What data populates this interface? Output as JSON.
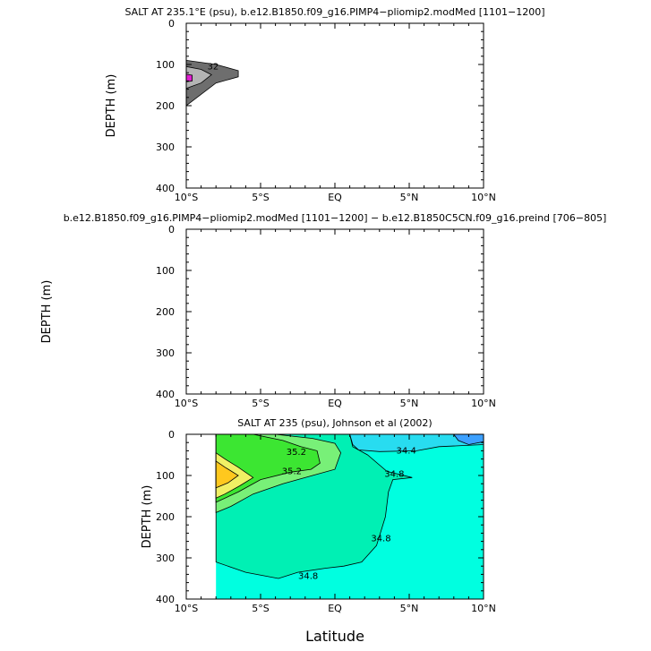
{
  "chart_data": [
    {
      "type": "contour",
      "title": "SALT AT 235.1°E (psu), b.e12.B1850.f09_g16.PIMP4−pliomip2.modMed [1101−1200]",
      "ylabel": "DEPTH (m)",
      "xlabel": "",
      "xlim": [
        -10,
        10
      ],
      "ylim": [
        400,
        0
      ],
      "xticks": [
        -10,
        -5,
        0,
        5,
        10
      ],
      "xtick_labels": [
        "10°S",
        "5°S",
        "EQ",
        "5°N",
        "10°N"
      ],
      "yticks": [
        0,
        100,
        200,
        300,
        400
      ],
      "ytick_labels": [
        "0",
        "100",
        "200",
        "300",
        "400"
      ],
      "contour_labels": [
        {
          "text": "32",
          "lat": -8.2,
          "depth": 105
        }
      ],
      "regions": [
        {
          "name": "outer",
          "color": "#6e6e6e",
          "points": [
            [
              -10,
              90
            ],
            [
              -8,
              100
            ],
            [
              -6.5,
              115
            ],
            [
              -6.5,
              130
            ],
            [
              -8,
              145
            ],
            [
              -10,
              200
            ]
          ]
        },
        {
          "name": "middle",
          "color": "#b4b4b4",
          "points": [
            [
              -10,
              105
            ],
            [
              -9,
              112
            ],
            [
              -8.3,
              125
            ],
            [
              -9,
              145
            ],
            [
              -10,
              158
            ]
          ]
        },
        {
          "name": "core",
          "color": "#e020d0",
          "points": [
            [
              -10,
              124
            ],
            [
              -9.6,
              126
            ],
            [
              -9.6,
              140
            ],
            [
              -10,
              142
            ]
          ]
        }
      ]
    },
    {
      "type": "contour",
      "title": "b.e12.B1850.f09_g16.PIMP4−pliomip2.modMed [1101−1200] − b.e12.B1850C5CN.f09_g16.preind [706−805]",
      "ylabel": "DEPTH (m)",
      "xlabel": "",
      "xlim": [
        -10,
        10
      ],
      "ylim": [
        400,
        0
      ],
      "xticks": [
        -10,
        -5,
        0,
        5,
        10
      ],
      "xtick_labels": [
        "10°S",
        "5°S",
        "EQ",
        "5°N",
        "10°N"
      ],
      "yticks": [
        0,
        100,
        200,
        300,
        400
      ],
      "ytick_labels": [
        "0",
        "100",
        "200",
        "300",
        "400"
      ],
      "regions": []
    },
    {
      "type": "contour",
      "title": "SALT AT 235 (psu), Johnson et al (2002)",
      "ylabel": "DEPTH (m)",
      "xlabel": "Latitude",
      "xlim": [
        -10,
        10
      ],
      "ylim": [
        400,
        0
      ],
      "xticks": [
        -10,
        -5,
        0,
        5,
        10
      ],
      "xtick_labels": [
        "10°S",
        "5°S",
        "EQ",
        "5°N",
        "10°N"
      ],
      "yticks": [
        0,
        100,
        200,
        300,
        400
      ],
      "ytick_labels": [
        "0",
        "100",
        "200",
        "300",
        "400"
      ],
      "data_xmin": -8,
      "background_color": "#00ffe0",
      "contour_labels": [
        {
          "text": "35.2",
          "lat": -2.6,
          "depth": 43
        },
        {
          "text": "35.2",
          "lat": -2.9,
          "depth": 90
        },
        {
          "text": "34.4",
          "lat": 4.8,
          "depth": 40
        },
        {
          "text": "34.8",
          "lat": 4.0,
          "depth": 97
        },
        {
          "text": "34.8",
          "lat": 3.1,
          "depth": 253
        },
        {
          "text": "34.8",
          "lat": -1.8,
          "depth": 345
        }
      ],
      "regions": [
        {
          "name": "s34p8",
          "color": "#00f0b4",
          "points": [
            [
              -8,
              0
            ],
            [
              1,
              0
            ],
            [
              1.2,
              30
            ],
            [
              2.2,
              50
            ],
            [
              3.5,
              90
            ],
            [
              5.2,
              105
            ],
            [
              3.9,
              110
            ],
            [
              3.6,
              140
            ],
            [
              3.4,
              200
            ],
            [
              2.8,
              270
            ],
            [
              1.8,
              310
            ],
            [
              0.6,
              320
            ],
            [
              -0.6,
              325
            ],
            [
              -2.5,
              335
            ],
            [
              -3.8,
              350
            ],
            [
              -6,
              335
            ],
            [
              -8,
              310
            ]
          ]
        },
        {
          "name": "s35p0",
          "color": "#78f078",
          "points": [
            [
              -8,
              0
            ],
            [
              -4,
              0
            ],
            [
              -1.5,
              10
            ],
            [
              0,
              22
            ],
            [
              0.4,
              45
            ],
            [
              0,
              85
            ],
            [
              -1.5,
              100
            ],
            [
              -3.5,
              120
            ],
            [
              -5.5,
              145
            ],
            [
              -7,
              175
            ],
            [
              -8,
              190
            ]
          ]
        },
        {
          "name": "s35p2",
          "color": "#3ce632",
          "points": [
            [
              -8,
              0
            ],
            [
              -5.5,
              0
            ],
            [
              -3.5,
              15
            ],
            [
              -2.3,
              30
            ],
            [
              -1.2,
              40
            ],
            [
              -1,
              70
            ],
            [
              -1.6,
              85
            ],
            [
              -3,
              92
            ],
            [
              -5,
              110
            ],
            [
              -6.5,
              140
            ],
            [
              -8,
              165
            ]
          ]
        },
        {
          "name": "s35p4",
          "color": "#f0f064",
          "points": [
            [
              -8,
              45
            ],
            [
              -7.4,
              60
            ],
            [
              -6.5,
              80
            ],
            [
              -5.5,
              105
            ],
            [
              -6.4,
              125
            ],
            [
              -7.4,
              145
            ],
            [
              -8,
              155
            ]
          ]
        },
        {
          "name": "s35p6",
          "color": "#ffc81e",
          "points": [
            [
              -8,
              65
            ],
            [
              -7.4,
              80
            ],
            [
              -6.5,
              100
            ],
            [
              -7.2,
              118
            ],
            [
              -8,
              130
            ]
          ]
        },
        {
          "name": "fresh",
          "color": "#28dcf0",
          "points": [
            [
              1,
              0
            ],
            [
              10,
              0
            ],
            [
              10,
              25
            ],
            [
              7,
              30
            ],
            [
              5.5,
              40
            ],
            [
              3,
              42
            ],
            [
              1.6,
              38
            ],
            [
              1.2,
              25
            ]
          ]
        },
        {
          "name": "fresh2",
          "color": "#3ca0ff",
          "points": [
            [
              8,
              0
            ],
            [
              10,
              0
            ],
            [
              10,
              18
            ],
            [
              9,
              25
            ],
            [
              8.3,
              15
            ]
          ]
        }
      ]
    }
  ]
}
